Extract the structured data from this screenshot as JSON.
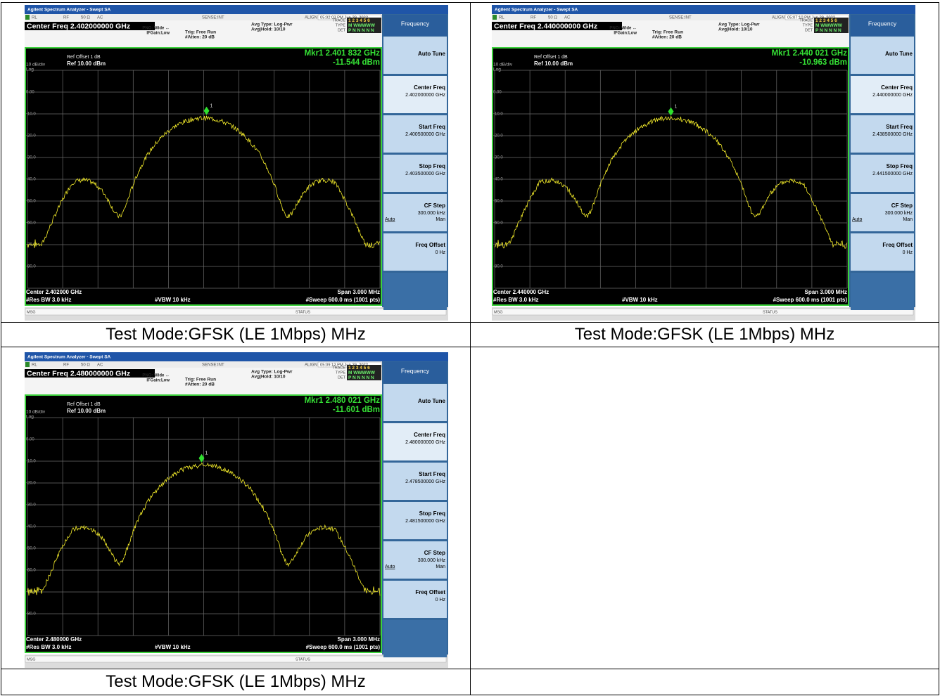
{
  "analyzer": {
    "window_title": "Agilent Spectrum Analyzer - Swept SA",
    "status_rl": "RL",
    "status_rf": "RF",
    "status_ohm": "50 Ω",
    "status_ac": "AC",
    "sense": "SENSE:INT",
    "align": "ALIGN AUTO",
    "pno": "PNO: Wide ↔",
    "ifgain": "IFGain:Low",
    "trig": "Trig: Free Run",
    "atten": "#Atten: 20 dB",
    "avg_type": "Avg Type: Log-Pwr",
    "avg_hold": "Avg|Hold: 10/10",
    "trace": "TRACE",
    "type": "TYPE",
    "det": "DET",
    "trace_nums": "1 2 3 4 5 6",
    "type_vals": "M WWWWW",
    "det_vals": "P N N N N N",
    "ref_offset": "Ref Offset 1 dB",
    "scale": "10 dB/div",
    "log": "Log",
    "ref": "Ref 10.00 dBm",
    "y_labels": [
      "0.00",
      "-10.0",
      "-20.0",
      "-30.0",
      "-40.0",
      "-50.0",
      "-60.0",
      "-70.0",
      "-80.0"
    ],
    "res_bw": "#Res BW 3.0 kHz",
    "vbw": "#VBW 10 kHz",
    "span": "Span 3.000 MHz",
    "sweep": "#Sweep  600.0 ms (1001 pts)",
    "msg": "MSG",
    "status": "STATUS",
    "marker_number": "1",
    "softkeys": {
      "menu": "Frequency",
      "auto_tune": "Auto Tune",
      "center": "Center Freq",
      "start": "Start Freq",
      "stop": "Stop Freq",
      "cf_step": "CF Step",
      "cf_step_value": "300.000 kHz",
      "auto": "Auto",
      "man": "Man",
      "freq_offset": "Freq Offset",
      "freq_offset_value": "0 Hz"
    }
  },
  "screens": [
    {
      "timestamp": "05:02:03 PM Jun 29, 2022",
      "center_freq": "Center Freq 2.402000000 GHz",
      "marker_freq": "Mkr1 2.401 832 GHz",
      "marker_level": "-11.544 dBm",
      "center": "Center 2.402000 GHz",
      "center_freq_key": "2.402000000 GHz",
      "start_freq": "2.400500000 GHz",
      "stop_freq": "2.403500000 GHz",
      "caption": "Test Mode:GFSK (LE 1Mbps) MHz"
    },
    {
      "timestamp": "05:07:10 PM Jun 29, 2022",
      "center_freq": "Center Freq 2.440000000 GHz",
      "marker_freq": "Mkr1 2.440 021 GHz",
      "marker_level": "-10.963 dBm",
      "center": "Center 2.440000 GHz",
      "center_freq_key": "2.440000000 GHz",
      "start_freq": "2.438500000 GHz",
      "stop_freq": "2.441500000 GHz",
      "caption": "Test Mode:GFSK (LE 1Mbps) MHz"
    },
    {
      "timestamp": "05:09:12 PM Jun 29, 2022",
      "center_freq": "Center Freq 2.480000000 GHz",
      "marker_freq": "Mkr1 2.480 021 GHz",
      "marker_level": "-11.601 dBm",
      "center": "Center 2.480000 GHz",
      "center_freq_key": "2.480000000 GHz",
      "start_freq": "2.478500000 GHz",
      "stop_freq": "2.481500000 GHz",
      "caption": "Test Mode:GFSK (LE 1Mbps) MHz"
    }
  ]
}
